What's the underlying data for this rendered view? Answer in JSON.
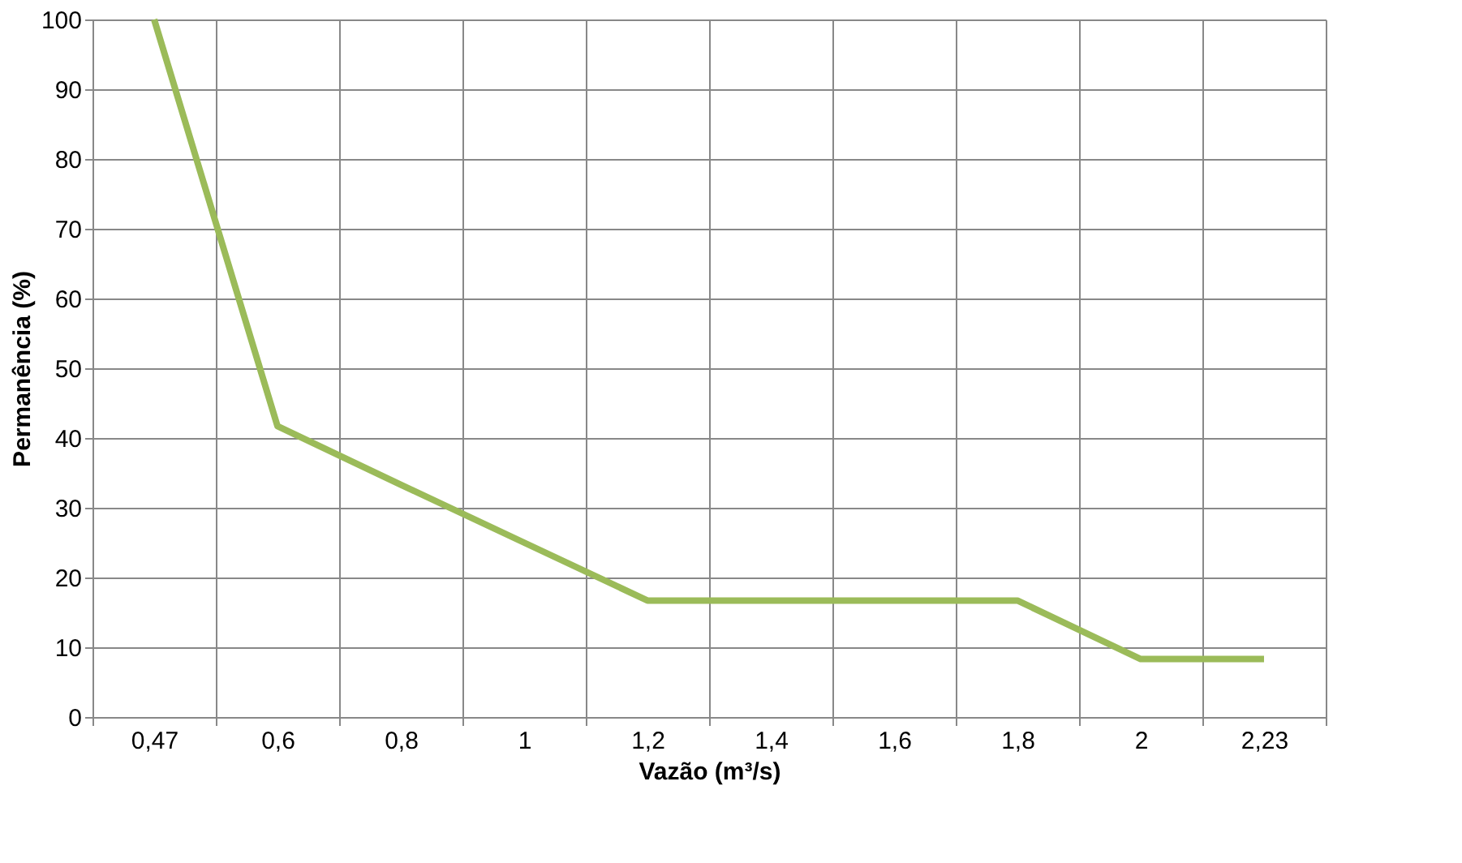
{
  "chart_data": {
    "type": "line",
    "xlabel": "Vazão (m³/s)",
    "ylabel": "Permanência  (%)",
    "categories": [
      "0,47",
      "0,6",
      "0,8",
      "1",
      "1,2",
      "1,4",
      "1,6",
      "1,8",
      "2",
      "2,23"
    ],
    "series": [
      {
        "color": "#9bbb59",
        "values": [
          100,
          41.7,
          33.3,
          25,
          16.7,
          16.7,
          16.7,
          16.7,
          8.3,
          8.3
        ]
      }
    ],
    "ylim": [
      0,
      100
    ],
    "yticks": [
      0,
      10,
      20,
      30,
      40,
      50,
      60,
      70,
      80,
      90,
      100
    ],
    "grid": true,
    "marker": "none",
    "line_style": "solid"
  }
}
